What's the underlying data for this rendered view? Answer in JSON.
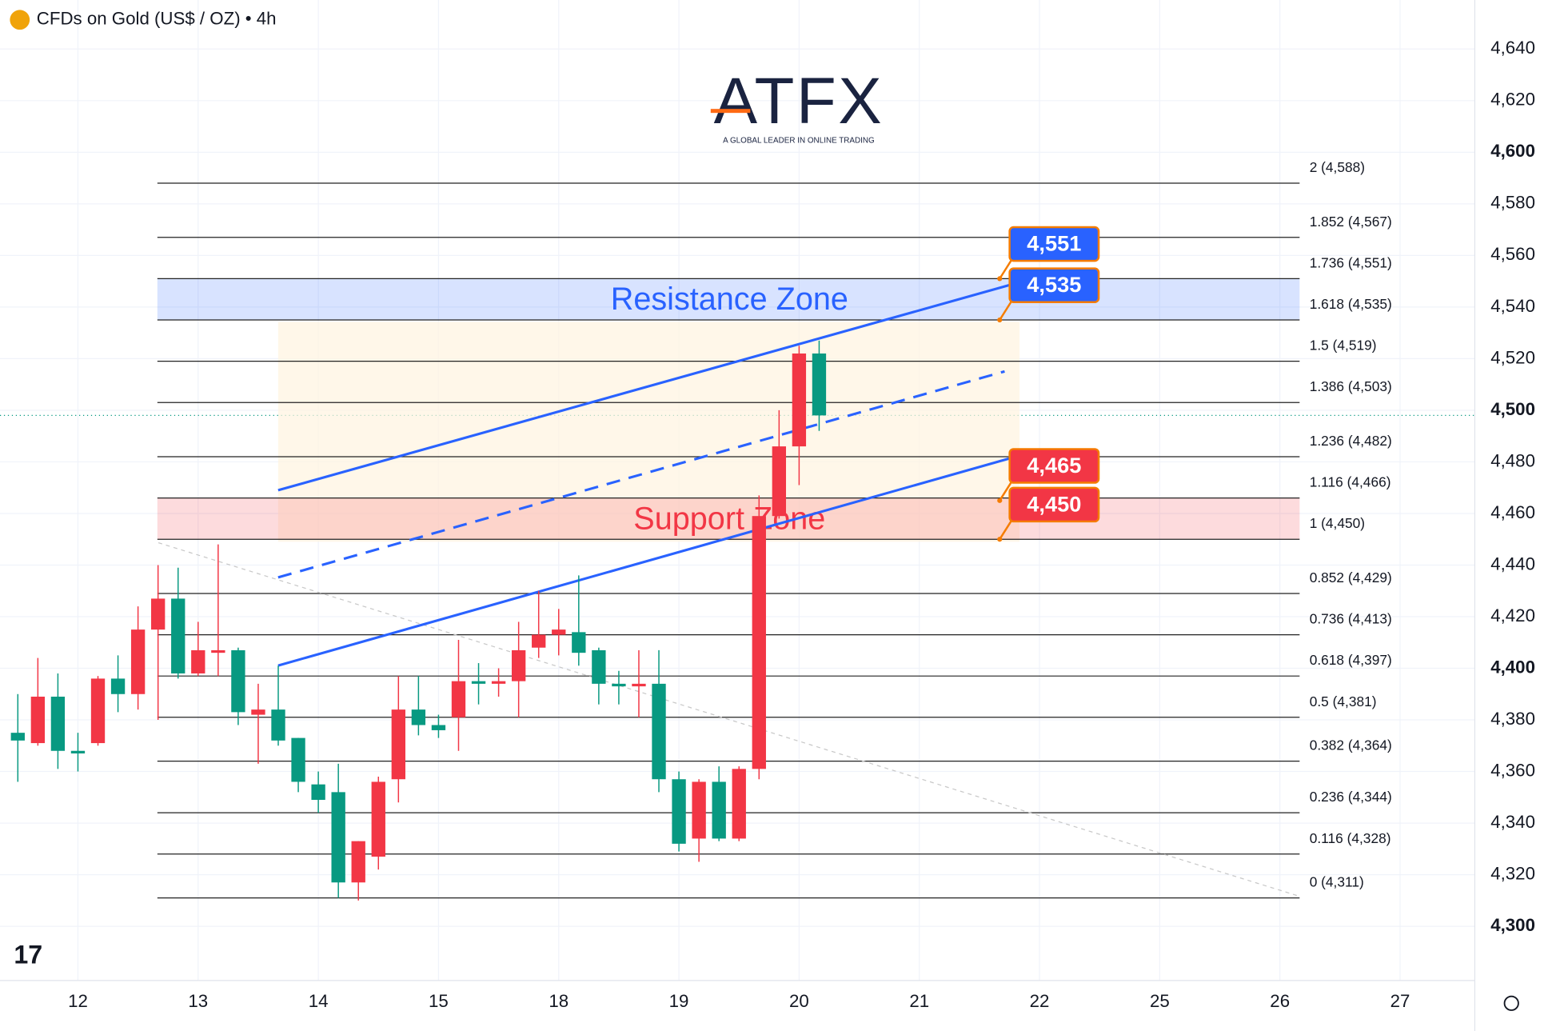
{
  "chart_data": {
    "type": "candlestick",
    "title": "CFDs on Gold (US$ / OZ) • 4h",
    "ylim": [
      4279,
      4659
    ],
    "yticks": [
      {
        "value": 4300,
        "label": "4,300"
      },
      {
        "value": 4320,
        "label": "4,320"
      },
      {
        "value": 4340,
        "label": "4,340"
      },
      {
        "value": 4360,
        "label": "4,360"
      },
      {
        "value": 4380,
        "label": "4,380"
      },
      {
        "value": 4400,
        "label": "4,400"
      },
      {
        "value": 4420,
        "label": "4,420"
      },
      {
        "value": 4440,
        "label": "4,440"
      },
      {
        "value": 4460,
        "label": "4,460"
      },
      {
        "value": 4480,
        "label": "4,480"
      },
      {
        "value": 4500,
        "label": "4,500"
      },
      {
        "value": 4520,
        "label": "4,520"
      },
      {
        "value": 4540,
        "label": "4,540"
      },
      {
        "value": 4560,
        "label": "4,560"
      },
      {
        "value": 4580,
        "label": "4,580"
      },
      {
        "value": 4600,
        "label": "4,600"
      },
      {
        "value": 4620,
        "label": "4,620"
      },
      {
        "value": 4640,
        "label": "4,640"
      }
    ],
    "xlim": [
      -0.89,
      72.63
    ],
    "xticks": [
      {
        "value": 3,
        "label": "12"
      },
      {
        "value": 9,
        "label": "13"
      },
      {
        "value": 15,
        "label": "14"
      },
      {
        "value": 21,
        "label": "15"
      },
      {
        "value": 27,
        "label": "18"
      },
      {
        "value": 33,
        "label": "19"
      },
      {
        "value": 39,
        "label": "20"
      },
      {
        "value": 45,
        "label": "21"
      },
      {
        "value": 51,
        "label": "22"
      },
      {
        "value": 57,
        "label": "25"
      },
      {
        "value": 63,
        "label": "26"
      },
      {
        "value": 69,
        "label": "27"
      }
    ],
    "up_color": "#f23645",
    "down_color": "#089981",
    "open": [
      4375,
      4371,
      4389,
      4368,
      4371,
      4396,
      4390,
      4415,
      4427,
      4398,
      4406,
      4407,
      4382,
      4384,
      4373,
      4355,
      4352,
      4317,
      4327,
      4357,
      4384,
      4378,
      4381,
      4395,
      4394,
      4395,
      4408,
      4413,
      4414,
      4407,
      4394,
      4393,
      4394,
      4357,
      4334,
      4356,
      4334,
      4361,
      4459,
      4486,
      4522
    ],
    "high": [
      4390,
      4404,
      4398,
      4375,
      4397,
      4405,
      4424,
      4440,
      4439,
      4418,
      4448,
      4408,
      4394,
      4401,
      4373,
      4360,
      4363,
      4333,
      4358,
      4397,
      4397,
      4382,
      4411,
      4402,
      4400,
      4418,
      4430,
      4423,
      4436,
      4408,
      4399,
      4407,
      4407,
      4360,
      4357,
      4362,
      4362,
      4467,
      4500,
      4525,
      4527
    ],
    "low": [
      4356,
      4370,
      4361,
      4360,
      4370,
      4383,
      4384,
      4380,
      4396,
      4397,
      4397,
      4378,
      4363,
      4370,
      4352,
      4344,
      4311,
      4310,
      4322,
      4348,
      4374,
      4373,
      4368,
      4386,
      4389,
      4381,
      4404,
      4405,
      4401,
      4386,
      4386,
      4381,
      4352,
      4329,
      4325,
      4333,
      4333,
      4357,
      4458,
      4471,
      4492
    ],
    "close": [
      4372,
      4389,
      4368,
      4367,
      4396,
      4390,
      4415,
      4427,
      4398,
      4407,
      4407,
      4383,
      4384,
      4372,
      4356,
      4349,
      4317,
      4333,
      4356,
      4384,
      4378,
      4376,
      4395,
      4394,
      4395,
      4407,
      4413,
      4415,
      4406,
      4394,
      4393,
      4394,
      4357,
      4332,
      4356,
      4334,
      4361,
      4459,
      4486,
      4522,
      4498
    ],
    "fib_levels": [
      {
        "value": 4588,
        "label": "2 (4,588)"
      },
      {
        "value": 4567,
        "label": "1.852 (4,567)"
      },
      {
        "value": 4551,
        "label": "1.736 (4,551)"
      },
      {
        "value": 4535,
        "label": "1.618 (4,535)"
      },
      {
        "value": 4519,
        "label": "1.5 (4,519)"
      },
      {
        "value": 4503,
        "label": "1.386 (4,503)"
      },
      {
        "value": 4482,
        "label": "1.236 (4,482)"
      },
      {
        "value": 4466,
        "label": "1.116 (4,466)"
      },
      {
        "value": 4450,
        "label": "1 (4,450)"
      },
      {
        "value": 4429,
        "label": "0.852 (4,429)"
      },
      {
        "value": 4413,
        "label": "0.736 (4,413)"
      },
      {
        "value": 4397,
        "label": "0.618 (4,397)"
      },
      {
        "value": 4381,
        "label": "0.5 (4,381)"
      },
      {
        "value": 4364,
        "label": "0.382 (4,364)"
      },
      {
        "value": 4344,
        "label": "0.236 (4,344)"
      },
      {
        "value": 4328,
        "label": "0.116 (4,328)"
      },
      {
        "value": 4311,
        "label": "0 (4,311)"
      }
    ],
    "zones": [
      {
        "name": "Resistance Zone",
        "from": 4535,
        "to": 4551,
        "color": "#2962ff"
      },
      {
        "name": "Support Zone",
        "from": 4450,
        "to": 4466,
        "color": "#f23645"
      }
    ],
    "price_tags": [
      {
        "value": 4551,
        "label": "4,551",
        "color": "#2962ff"
      },
      {
        "value": 4535,
        "label": "4,535",
        "color": "#2962ff"
      },
      {
        "value": 4465,
        "label": "4,465",
        "color": "#f23645"
      },
      {
        "value": 4450,
        "label": "4,450",
        "color": "#f23645"
      }
    ]
  },
  "logo": {
    "text": "ATFX",
    "tagline": "A GLOBAL LEADER IN ONLINE TRADING"
  }
}
